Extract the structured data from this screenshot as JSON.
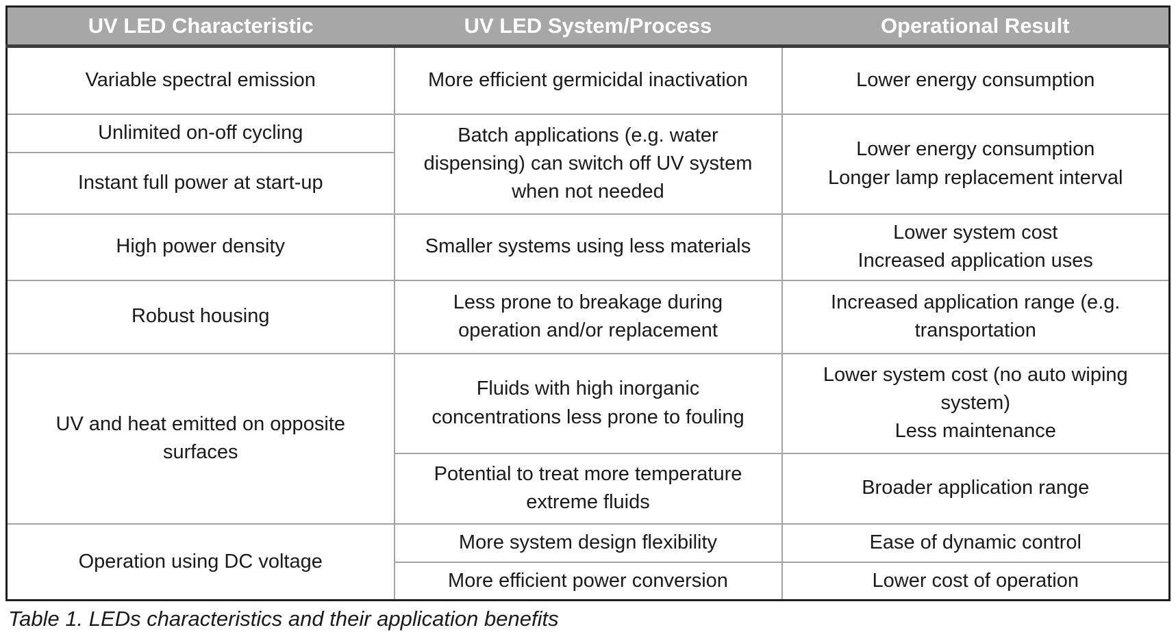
{
  "caption": "Table 1. LEDs characteristics and their application benefits",
  "colors": {
    "header_bg": "#a7a7a7",
    "header_text": "#ffffff",
    "grid_line": "#a3a3a3",
    "outer_border": "#1f1f1f",
    "body_text": "#1a1a1a"
  },
  "chart_data": {
    "type": "table",
    "title": "Table 1. LEDs characteristics and their application benefits",
    "columns": [
      "UV LED Characteristic",
      "UV LED System/Process",
      "Operational Result"
    ]
  },
  "table": {
    "headers": {
      "characteristic": "UV LED Characteristic",
      "system_process": "UV LED System/Process",
      "operational_result": "Operational Result"
    },
    "rows": {
      "variable_spectral": {
        "characteristic": "Variable spectral emission",
        "system": "More efficient germicidal inactivation",
        "result": "Lower energy consumption"
      },
      "on_off_cycling": {
        "characteristic_1": "Unlimited on-off cycling",
        "characteristic_2": "Instant full power at start-up",
        "system": "Batch applications (e.g. water dispensing) can switch off UV system when not needed",
        "result_line1": "Lower energy consumption",
        "result_line2": "Longer lamp replacement interval"
      },
      "high_power_density": {
        "characteristic": "High power density",
        "system": "Smaller systems using less materials",
        "result_line1": "Lower system cost",
        "result_line2": "Increased application uses"
      },
      "robust_housing": {
        "characteristic": "Robust housing",
        "system": "Less prone to breakage during operation and/or replacement",
        "result": "Increased application range (e.g. transportation"
      },
      "uv_heat_opposite": {
        "characteristic": "UV and heat emitted on opposite surfaces",
        "system_1": "Fluids with high inorganic concentrations less prone to fouling",
        "result_1_line1": "Lower system cost (no auto wiping system)",
        "result_1_line2": "Less maintenance",
        "system_2": "Potential to treat more temperature extreme fluids",
        "result_2": "Broader application range"
      },
      "dc_voltage": {
        "characteristic": "Operation using DC voltage",
        "system_1": "More system design flexibility",
        "result_1": "Ease of dynamic control",
        "system_2": "More efficient power conversion",
        "result_2": "Lower cost of operation"
      }
    }
  }
}
